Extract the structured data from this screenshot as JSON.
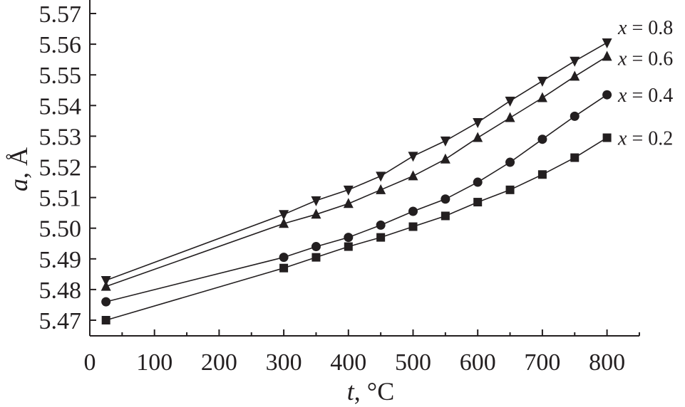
{
  "chart_data": {
    "type": "line",
    "title": "",
    "xlabel_var": "t",
    "xlabel_unit": ", °C",
    "ylabel_var": "a",
    "ylabel_unit": ", Å",
    "xlim": [
      0,
      850
    ],
    "ylim": [
      5.465,
      5.575
    ],
    "xticks": [
      0,
      100,
      200,
      300,
      400,
      500,
      600,
      700,
      800
    ],
    "xtick_labels": [
      "0",
      "100",
      "200",
      "300",
      "400",
      "500",
      "600",
      "700",
      "800"
    ],
    "yticks": [
      5.47,
      5.48,
      5.49,
      5.5,
      5.51,
      5.52,
      5.53,
      5.54,
      5.55,
      5.56,
      5.57
    ],
    "ytick_labels": [
      "5.47",
      "5.48",
      "5.49",
      "5.50",
      "5.51",
      "5.52",
      "5.53",
      "5.54",
      "5.55",
      "5.56",
      "5.57"
    ],
    "grid": false,
    "series": [
      {
        "name": "x = 0.2",
        "var": "x",
        "rest": " = 0.2",
        "marker": "square",
        "x": [
          25,
          300,
          350,
          400,
          450,
          500,
          550,
          600,
          650,
          700,
          750,
          800
        ],
        "y": [
          5.47,
          5.487,
          5.4905,
          5.494,
          5.497,
          5.5005,
          5.504,
          5.5085,
          5.5125,
          5.5175,
          5.523,
          5.5295
        ]
      },
      {
        "name": "x = 0.4",
        "var": "x",
        "rest": " = 0.4",
        "marker": "circle",
        "x": [
          25,
          300,
          350,
          400,
          450,
          500,
          550,
          600,
          650,
          700,
          750,
          800
        ],
        "y": [
          5.476,
          5.4905,
          5.494,
          5.497,
          5.501,
          5.5055,
          5.5095,
          5.515,
          5.5215,
          5.529,
          5.5365,
          5.5435
        ]
      },
      {
        "name": "x = 0.6",
        "var": "x",
        "rest": " = 0.6",
        "marker": "triangle-up",
        "x": [
          25,
          300,
          350,
          400,
          450,
          500,
          550,
          600,
          650,
          700,
          750,
          800
        ],
        "y": [
          5.481,
          5.5015,
          5.5045,
          5.508,
          5.5125,
          5.517,
          5.5225,
          5.5295,
          5.536,
          5.5425,
          5.5495,
          5.556
        ]
      },
      {
        "name": "x = 0.8",
        "var": "x",
        "rest": " = 0.8",
        "marker": "triangle-down",
        "x": [
          25,
          300,
          350,
          400,
          450,
          500,
          550,
          600,
          650,
          700,
          750,
          800
        ],
        "y": [
          5.483,
          5.5045,
          5.509,
          5.5125,
          5.517,
          5.5235,
          5.5285,
          5.5345,
          5.5415,
          5.548,
          5.5545,
          5.5605
        ]
      }
    ]
  }
}
